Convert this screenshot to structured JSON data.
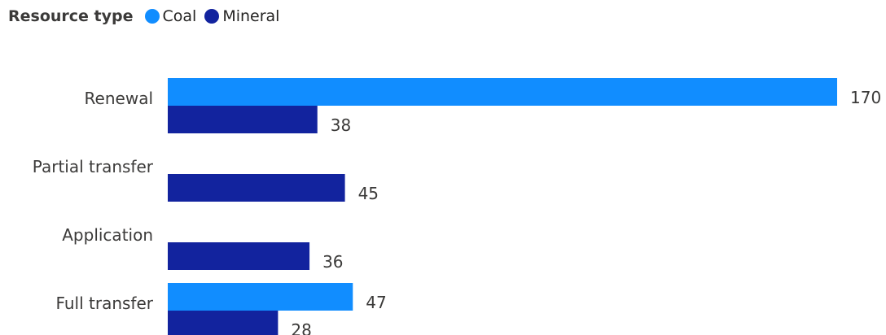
{
  "chart_data": {
    "type": "bar",
    "orientation": "horizontal",
    "legend_title": "Resource type",
    "legend_position": "top-left",
    "categories": [
      "Renewal",
      "Partial transfer",
      "Application",
      "Full transfer"
    ],
    "series": [
      {
        "name": "Coal",
        "color": "#118dff",
        "values": [
          170,
          null,
          null,
          47
        ]
      },
      {
        "name": "Mineral",
        "color": "#12239e",
        "values": [
          38,
          45,
          36,
          28
        ]
      }
    ],
    "xlim": [
      0,
      170
    ],
    "grid": false,
    "data_labels": true
  }
}
